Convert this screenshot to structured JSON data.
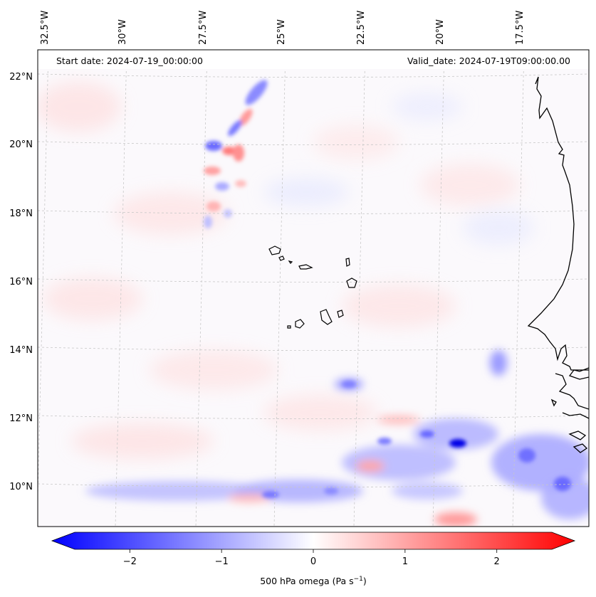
{
  "header": {
    "start_date": "Start date: 2024-07-19_00:00:00",
    "valid_date": "Valid_date: 2024-07-19T09:00:00.00"
  },
  "axes": {
    "lon_labels": [
      "32.5°W",
      "30°W",
      "27.5°W",
      "25°W",
      "22.5°W",
      "20°W",
      "17.5°W"
    ],
    "lat_labels": [
      "22°N",
      "20°N",
      "18°N",
      "16°N",
      "14°N",
      "12°N",
      "10°N"
    ]
  },
  "colorbar": {
    "label_main": "500 hPa omega (Pa s",
    "label_exp": "−1",
    "label_close": ")",
    "ticks": [
      "−2",
      "−1",
      "0",
      "1",
      "2"
    ],
    "tick_values": [
      -2,
      -1,
      0,
      1,
      2
    ],
    "range": [
      -2.6,
      2.6
    ],
    "colors": {
      "negative": "#0000ff",
      "zero": "#ffffff",
      "positive": "#ff0000"
    }
  },
  "colors": {
    "coastline": "#000000",
    "grid": "#c8c8c8"
  }
}
